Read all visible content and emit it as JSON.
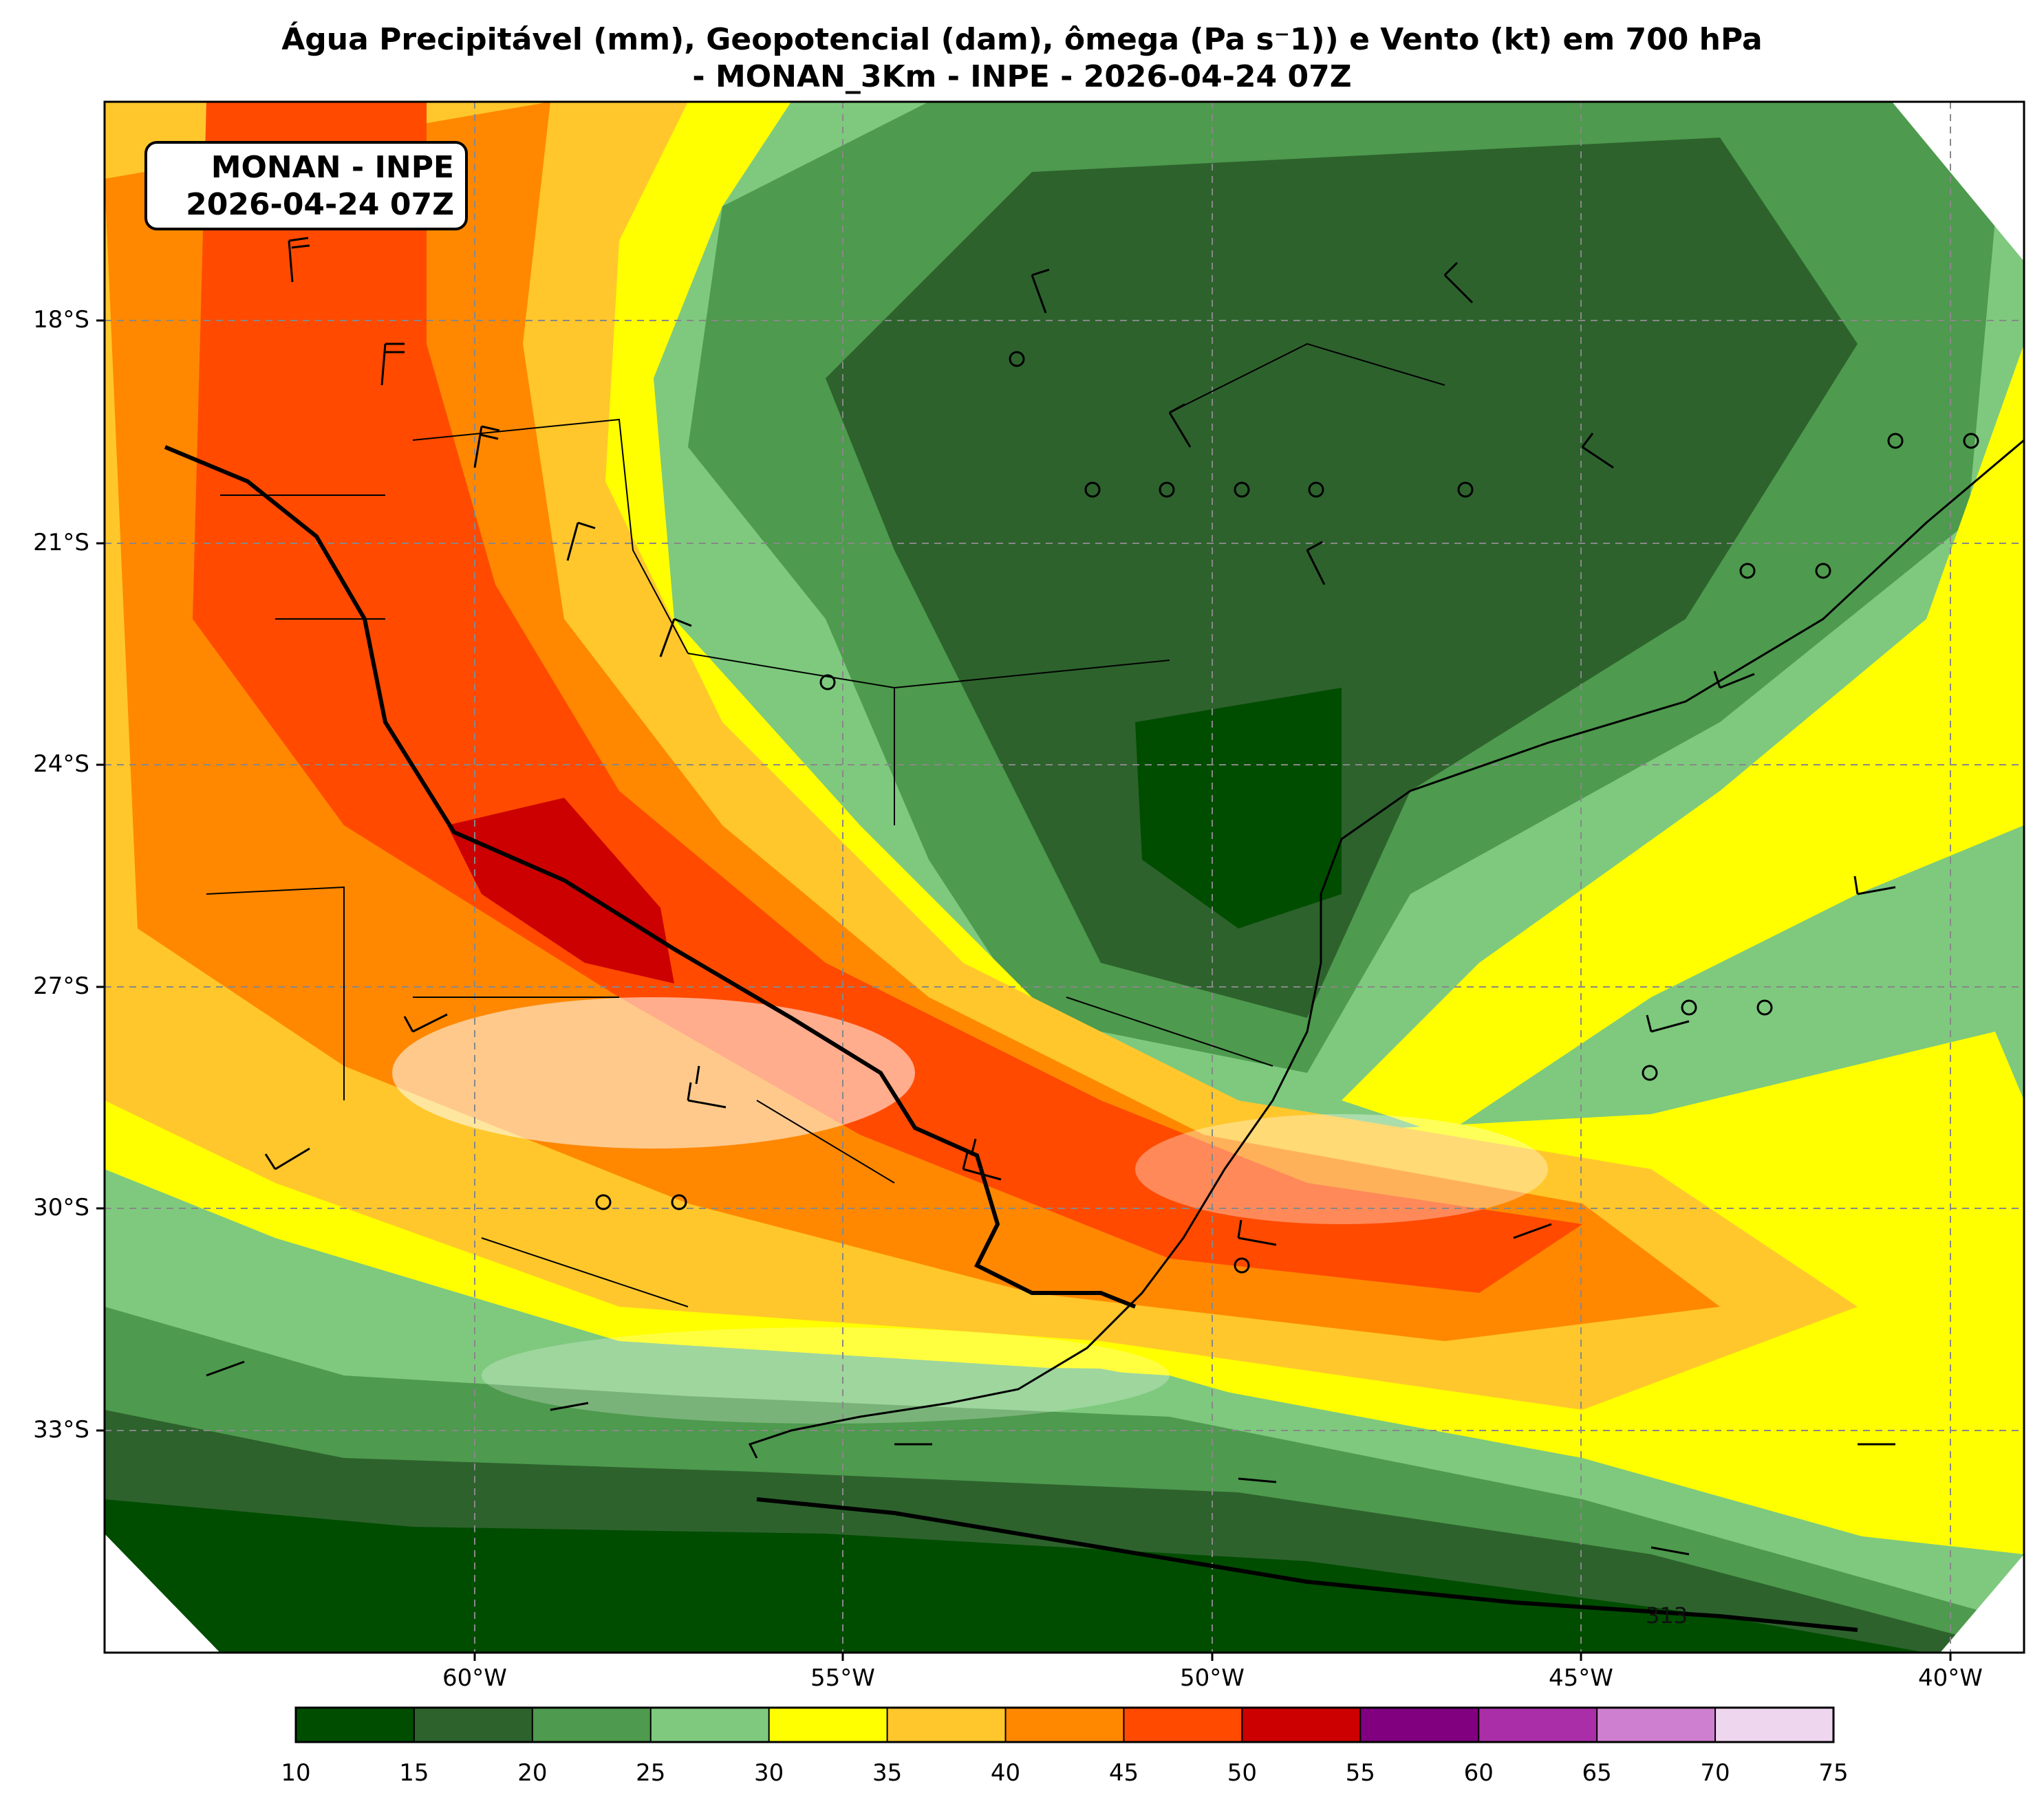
{
  "title_line1": "Água Precipitável (mm), Geopotencial (dam), ômega (Pa s⁻1)) e Vento (kt) em 700 hPa",
  "title_line2": "- MONAN_3Km - INPE - 2026-04-24 07Z",
  "stamp": {
    "line1": "MONAN - INPE",
    "line2": "2026-04-24 07Z"
  },
  "lat_labels": [
    "18°S",
    "21°S",
    "24°S",
    "27°S",
    "30°S",
    "33°S"
  ],
  "lon_labels": [
    "60°W",
    "55°W",
    "50°W",
    "45°W",
    "40°W"
  ],
  "contour_label": "313",
  "colorbar": {
    "ticks": [
      "10",
      "15",
      "20",
      "25",
      "30",
      "35",
      "40",
      "45",
      "50",
      "55",
      "60",
      "65",
      "70",
      "75"
    ],
    "colors": [
      "#004d00",
      "#2d622d",
      "#4e9a4e",
      "#7ec97e",
      "#ffff00",
      "#ffc72c",
      "#ff8800",
      "#ff4a00",
      "#cc0000",
      "#800080",
      "#aa2ea8",
      "#cf7fcf",
      "#efd6ef"
    ]
  },
  "palette": {
    "dark_green": "#004d00",
    "green2": "#2d622d",
    "green3": "#4e9a4e",
    "light_green": "#7ec97e",
    "yellow": "#ffff00",
    "gold": "#ffc72c",
    "orange": "#ff8800",
    "red_orange": "#ff4a00",
    "red": "#cc0000"
  }
}
